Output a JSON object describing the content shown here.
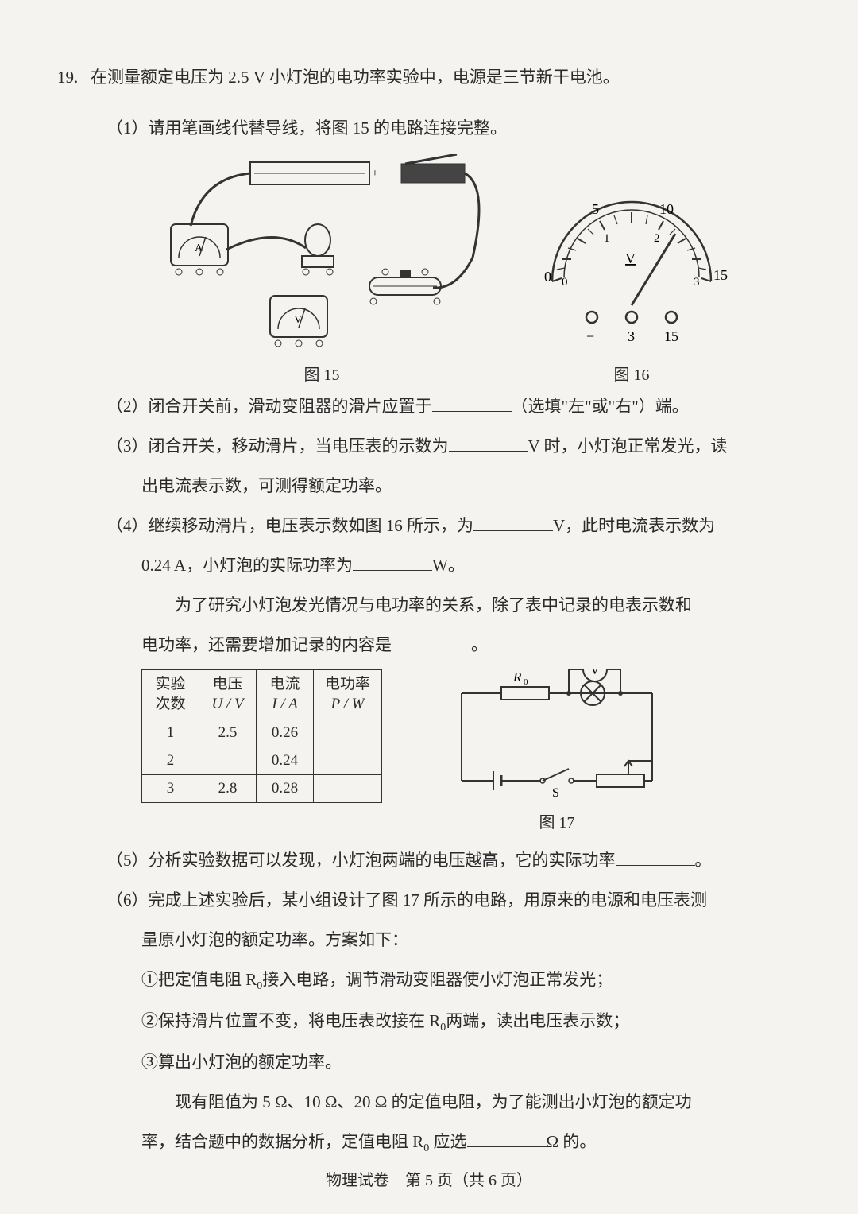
{
  "question_number": "19.",
  "intro": "在测量额定电压为 2.5 V 小灯泡的电功率实验中，电源是三节新干电池。",
  "sub1": "（1）请用笔画线代替导线，将图 15 的电路连接完整。",
  "fig15_label": "图 15",
  "fig16_label": "图 16",
  "fig17_label": "图 17",
  "voltmeter": {
    "top_ticks": [
      "0",
      "5",
      "10",
      "15"
    ],
    "bottom_ticks": [
      "0",
      "1",
      "2",
      "3"
    ],
    "unit_label": "V",
    "terminals": [
      "−",
      "3",
      "15"
    ]
  },
  "sub2_a": "（2）闭合开关前，滑动变阻器的滑片应置于",
  "sub2_b": "（选填\"左\"或\"右\"）端。",
  "sub3_a": "（3）闭合开关，移动滑片，当电压表的示数为",
  "sub3_b": "V 时，小灯泡正常发光，读",
  "sub3_c": "出电流表示数，可测得额定功率。",
  "sub4_a": "（4）继续移动滑片，电压表示数如图 16 所示，为",
  "sub4_b": "V，此时电流表示数为",
  "sub4_c": "0.24 A，小灯泡的实际功率为",
  "sub4_d": "W。",
  "sub4_e": "为了研究小灯泡发光情况与电功率的关系，除了表中记录的电表示数和",
  "sub4_f": "电功率，还需要增加记录的内容是",
  "sub4_g": "。",
  "table": {
    "headers": [
      {
        "l1": "实验",
        "l2": "次数"
      },
      {
        "l1": "电压",
        "l2": "U / V"
      },
      {
        "l1": "电流",
        "l2": "I / A"
      },
      {
        "l1": "电功率",
        "l2": "P / W"
      }
    ],
    "rows": [
      [
        "1",
        "2.5",
        "0.26",
        ""
      ],
      [
        "2",
        "",
        "0.24",
        ""
      ],
      [
        "3",
        "2.8",
        "0.28",
        ""
      ]
    ]
  },
  "circuit17": {
    "r0_label": "R",
    "r0_sub": "0",
    "v_label": "V",
    "s_label": "S"
  },
  "sub5_a": "（5）分析实验数据可以发现，小灯泡两端的电压越高，它的实际功率",
  "sub5_b": "。",
  "sub6_a": "（6）完成上述实验后，某小组设计了图 17 所示的电路，用原来的电源和电压表测",
  "sub6_b": "量原小灯泡的额定功率。方案如下：",
  "sub6_1": "①把定值电阻 R",
  "sub6_1b": "接入电路，调节滑动变阻器使小灯泡正常发光；",
  "sub6_2": "②保持滑片位置不变，将电压表改接在 R",
  "sub6_2b": "两端，读出电压表示数；",
  "sub6_3": "③算出小灯泡的额定功率。",
  "sub6_end_a": "现有阻值为 5 Ω、10 Ω、20 Ω 的定值电阻，为了能测出小灯泡的额定功",
  "sub6_end_b": "率，结合题中的数据分析，定值电阻 R",
  "sub6_end_c": " 应选",
  "sub6_end_d": "Ω 的。",
  "footer": "物理试卷　第 5 页（共 6 页）",
  "colors": {
    "bg": "#f5f3f0",
    "text": "#2a2a2a",
    "line": "#333333"
  }
}
